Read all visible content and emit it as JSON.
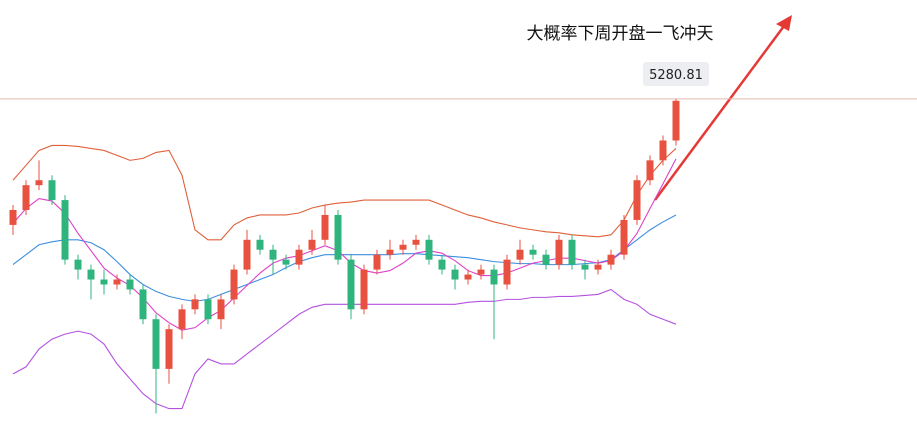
{
  "chart_data": {
    "type": "candlestick",
    "annotation": "大概率下周开盘一飞冲天",
    "price_line": 5280.81,
    "up_color": "#e8503f",
    "down_color": "#2fb47e",
    "ylim": [
      4630,
      5480
    ],
    "open": [
      5027,
      5057,
      5107,
      5117,
      5077,
      4957,
      4937,
      4917,
      4907,
      4917,
      4897,
      4837,
      4737,
      4817,
      4857,
      4877,
      4837,
      4877,
      4937,
      4997,
      4977,
      4957,
      4947,
      4977,
      4997,
      5047,
      4957,
      4857,
      4937,
      4967,
      4977,
      4987,
      4997,
      4957,
      4937,
      4917,
      4927,
      4937,
      4907,
      4957,
      4977,
      4967,
      4947,
      4997,
      4947,
      4937,
      4947,
      4967,
      5037,
      5117,
      5157,
      5197
    ],
    "high": [
      5067,
      5117,
      5157,
      5127,
      5087,
      4967,
      4947,
      4937,
      4927,
      4927,
      4907,
      4847,
      4827,
      4867,
      4887,
      4887,
      4887,
      4947,
      5017,
      5007,
      4987,
      4967,
      4987,
      5017,
      5067,
      5057,
      4967,
      4947,
      4977,
      4997,
      4997,
      5007,
      5007,
      4967,
      4947,
      4937,
      4947,
      4947,
      4967,
      4997,
      4987,
      4977,
      5007,
      5007,
      4957,
      4957,
      4977,
      5047,
      5127,
      5167,
      5207,
      5280.81
    ],
    "low": [
      5007,
      5047,
      5097,
      5067,
      4947,
      4917,
      4877,
      4887,
      4897,
      4887,
      4827,
      4647,
      4707,
      4797,
      4847,
      4827,
      4817,
      4867,
      4927,
      4967,
      4927,
      4937,
      4937,
      4967,
      4987,
      4947,
      4837,
      4847,
      4927,
      4957,
      4967,
      4977,
      4947,
      4927,
      4897,
      4907,
      4917,
      4797,
      4897,
      4947,
      4957,
      4937,
      4937,
      4937,
      4917,
      4927,
      4937,
      4957,
      5027,
      5107,
      5147,
      5187
    ],
    "close": [
      5057,
      5107,
      5117,
      5077,
      4957,
      4937,
      4917,
      4907,
      4917,
      4897,
      4837,
      4737,
      4817,
      4857,
      4877,
      4837,
      4877,
      4937,
      4997,
      4977,
      4957,
      4947,
      4977,
      4997,
      5047,
      4957,
      4857,
      4937,
      4967,
      4977,
      4987,
      4997,
      4957,
      4937,
      4917,
      4927,
      4937,
      4907,
      4957,
      4977,
      4967,
      4947,
      4997,
      4947,
      4937,
      4947,
      4967,
      5037,
      5117,
      5157,
      5197,
      5277
    ],
    "series": [
      {
        "color": "#e0603a",
        "values": [
          5117,
          5147,
          5177,
          5187,
          5187,
          5185,
          5181,
          5177,
          5167,
          5157,
          5161,
          5173,
          5177,
          5127,
          5017,
          4997,
          4997,
          5027,
          5041,
          5047,
          5047,
          5047,
          5051,
          5061,
          5067,
          5071,
          5073,
          5077,
          5077,
          5077,
          5077,
          5077,
          5077,
          5067,
          5057,
          5047,
          5041,
          5033,
          5027,
          5021,
          5017,
          5013,
          5011,
          5007,
          5005,
          5003,
          5007,
          5037,
          5087,
          5127,
          5157,
          5181
        ]
      },
      {
        "color": "#3b8fe0",
        "values": [
          4947,
          4967,
          4987,
          4993,
          4997,
          4997,
          4991,
          4977,
          4953,
          4927,
          4907,
          4893,
          4883,
          4877,
          4873,
          4877,
          4887,
          4897,
          4907,
          4917,
          4927,
          4941,
          4953,
          4961,
          4967,
          4967,
          4967,
          4967,
          4967,
          4967,
          4969,
          4969,
          4967,
          4965,
          4963,
          4961,
          4957,
          4953,
          4951,
          4949,
          4949,
          4947,
          4947,
          4947,
          4949,
          4951,
          4957,
          4977,
          4997,
          5017,
          5033,
          5047
        ]
      },
      {
        "color": "#b452e0",
        "values": [
          4727,
          4741,
          4777,
          4797,
          4807,
          4813,
          4807,
          4787,
          4747,
          4717,
          4687,
          4667,
          4657,
          4657,
          4727,
          4757,
          4747,
          4747,
          4767,
          4787,
          4807,
          4827,
          4847,
          4861,
          4867,
          4867,
          4867,
          4867,
          4867,
          4867,
          4867,
          4867,
          4867,
          4867,
          4867,
          4871,
          4873,
          4873,
          4877,
          4877,
          4881,
          4881,
          4883,
          4883,
          4885,
          4887,
          4897,
          4877,
          4867,
          4847,
          4837,
          4827
        ]
      },
      {
        "color": "#e040c8",
        "values": [
          5030,
          5060,
          5080,
          5075,
          5050,
          5010,
          4975,
          4940,
          4920,
          4905,
          4880,
          4850,
          4830,
          4815,
          4820,
          4840,
          4855,
          4880,
          4905,
          4930,
          4950,
          4960,
          4965,
          4975,
          4985,
          4975,
          4950,
          4935,
          4930,
          4935,
          4950,
          4970,
          4975,
          4970,
          4955,
          4935,
          4925,
          4925,
          4930,
          4940,
          4950,
          4955,
          4960,
          4960,
          4955,
          4950,
          4955,
          4975,
          5010,
          5060,
          5110,
          5160
        ]
      }
    ]
  }
}
